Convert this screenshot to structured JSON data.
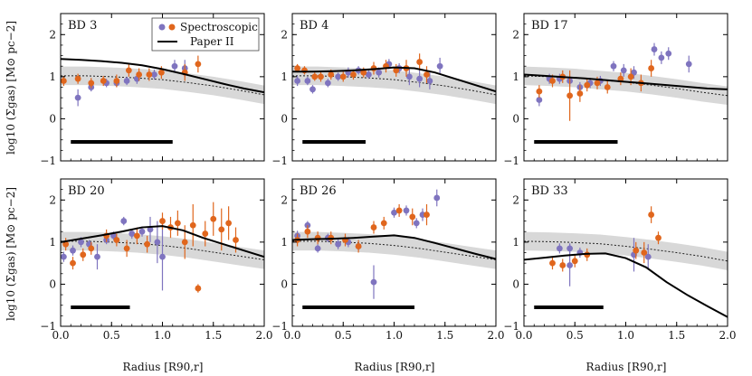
{
  "figure": {
    "xlabel": "Radius [R90,r]",
    "ylabel": "log10 (Σgas) [M⊙ pc−2]",
    "xlim": [
      0.0,
      2.0
    ],
    "ylim": [
      -1,
      2.5
    ],
    "xticks": [
      "0.0",
      "0.5",
      "1.0",
      "1.5",
      "2.0"
    ],
    "yticks": [
      "−1",
      "0",
      "1",
      "2"
    ],
    "colors": {
      "spec": "#e0661d",
      "photo": "#7f74bf",
      "model": "#000000",
      "band": "#d8d8d8",
      "dotted": "#222222"
    },
    "legend": {
      "spectroscopic": "Spectroscopic",
      "paper2": "Paper II"
    }
  },
  "chart_data": [
    {
      "type": "scatter",
      "title": "BD 3",
      "bar_length": 1.0,
      "model": {
        "x": [
          0.0,
          0.2,
          0.4,
          0.6,
          0.8,
          1.0,
          1.2,
          1.4,
          1.6,
          1.8,
          2.0
        ],
        "y": [
          1.42,
          1.4,
          1.37,
          1.33,
          1.27,
          1.18,
          1.07,
          0.95,
          0.83,
          0.72,
          0.63
        ]
      },
      "dotted": {
        "x": [
          0.0,
          0.25,
          0.5,
          0.75,
          1.0,
          1.25,
          1.5,
          1.75,
          2.0
        ],
        "y": [
          1.02,
          1.02,
          1.0,
          0.97,
          0.93,
          0.86,
          0.78,
          0.68,
          0.57
        ]
      },
      "band_width": 0.22,
      "photometric": [
        [
          0.17,
          0.5,
          0.2
        ],
        [
          0.3,
          0.75,
          0.1
        ],
        [
          0.45,
          0.85,
          0.1
        ],
        [
          0.55,
          0.85,
          0.1
        ],
        [
          0.65,
          0.9,
          0.1
        ],
        [
          0.75,
          0.95,
          0.12
        ],
        [
          0.92,
          1.05,
          0.12
        ],
        [
          1.12,
          1.25,
          0.15
        ],
        [
          1.22,
          1.2,
          0.2
        ]
      ],
      "spectroscopic": [
        [
          0.03,
          0.9,
          0.12
        ],
        [
          0.17,
          0.95,
          0.12
        ],
        [
          0.3,
          0.85,
          0.12
        ],
        [
          0.42,
          0.9,
          0.12
        ],
        [
          0.55,
          0.9,
          0.15
        ],
        [
          0.67,
          1.15,
          0.15
        ],
        [
          0.77,
          1.05,
          0.15
        ],
        [
          0.87,
          1.05,
          0.15
        ],
        [
          0.99,
          1.1,
          0.15
        ],
        [
          1.22,
          1.1,
          0.2
        ],
        [
          1.35,
          1.3,
          0.2
        ]
      ]
    },
    {
      "type": "scatter",
      "title": "BD 4",
      "bar_length": 0.62,
      "model": {
        "x": [
          0.0,
          0.2,
          0.4,
          0.6,
          0.8,
          1.0,
          1.2,
          1.4,
          1.6,
          1.8,
          2.0
        ],
        "y": [
          1.12,
          1.12,
          1.13,
          1.15,
          1.18,
          1.22,
          1.2,
          1.1,
          0.95,
          0.8,
          0.65
        ]
      },
      "dotted": {
        "x": [
          0.0,
          0.25,
          0.5,
          0.75,
          1.0,
          1.25,
          1.5,
          1.75,
          2.0
        ],
        "y": [
          1.02,
          1.02,
          1.0,
          0.97,
          0.93,
          0.86,
          0.78,
          0.68,
          0.57
        ]
      },
      "band_width": 0.22,
      "photometric": [
        [
          0.05,
          0.9,
          0.12
        ],
        [
          0.15,
          0.9,
          0.1
        ],
        [
          0.2,
          0.7,
          0.1
        ],
        [
          0.35,
          0.85,
          0.1
        ],
        [
          0.45,
          1.0,
          0.1
        ],
        [
          0.55,
          1.1,
          0.12
        ],
        [
          0.65,
          1.15,
          0.1
        ],
        [
          0.75,
          1.05,
          0.1
        ],
        [
          0.85,
          1.1,
          0.12
        ],
        [
          0.95,
          1.3,
          0.12
        ],
        [
          1.05,
          1.2,
          0.12
        ],
        [
          1.15,
          1.0,
          0.2
        ],
        [
          1.25,
          0.95,
          0.2
        ],
        [
          1.35,
          0.9,
          0.2
        ],
        [
          1.45,
          1.25,
          0.2
        ]
      ],
      "spectroscopic": [
        [
          0.05,
          1.2,
          0.1
        ],
        [
          0.12,
          1.15,
          0.1
        ],
        [
          0.22,
          1.0,
          0.1
        ],
        [
          0.28,
          1.0,
          0.12
        ],
        [
          0.38,
          1.05,
          0.12
        ],
        [
          0.5,
          1.0,
          0.12
        ],
        [
          0.6,
          1.05,
          0.12
        ],
        [
          0.7,
          1.1,
          0.12
        ],
        [
          0.8,
          1.2,
          0.15
        ],
        [
          0.92,
          1.25,
          0.15
        ],
        [
          1.02,
          1.15,
          0.15
        ],
        [
          1.12,
          1.2,
          0.2
        ],
        [
          1.25,
          1.35,
          0.2
        ],
        [
          1.32,
          1.05,
          0.2
        ]
      ]
    },
    {
      "type": "scatter",
      "title": "BD 17",
      "bar_length": 0.82,
      "model": {
        "x": [
          0.0,
          0.2,
          0.4,
          0.6,
          0.8,
          1.0,
          1.2,
          1.4,
          1.6,
          1.8,
          2.0
        ],
        "y": [
          1.05,
          1.02,
          0.99,
          0.96,
          0.92,
          0.88,
          0.84,
          0.8,
          0.76,
          0.72,
          0.7
        ]
      },
      "dotted": {
        "x": [
          0.0,
          0.25,
          0.5,
          0.75,
          1.0,
          1.25,
          1.5,
          1.75,
          2.0
        ],
        "y": [
          1.02,
          1.0,
          0.97,
          0.92,
          0.87,
          0.8,
          0.72,
          0.63,
          0.55
        ]
      },
      "band_width": 0.22,
      "photometric": [
        [
          0.15,
          0.45,
          0.15
        ],
        [
          0.25,
          0.95,
          0.12
        ],
        [
          0.35,
          0.95,
          0.12
        ],
        [
          0.45,
          0.9,
          0.12
        ],
        [
          0.55,
          0.75,
          0.12
        ],
        [
          0.65,
          0.85,
          0.12
        ],
        [
          0.75,
          0.9,
          0.12
        ],
        [
          0.88,
          1.25,
          0.12
        ],
        [
          0.98,
          1.15,
          0.15
        ],
        [
          1.08,
          1.1,
          0.15
        ],
        [
          1.28,
          1.65,
          0.15
        ],
        [
          1.35,
          1.45,
          0.15
        ],
        [
          1.42,
          1.55,
          0.15
        ],
        [
          1.62,
          1.3,
          0.2
        ]
      ],
      "spectroscopic": [
        [
          0.15,
          0.65,
          0.15
        ],
        [
          0.28,
          0.9,
          0.15
        ],
        [
          0.38,
          1.0,
          0.15
        ],
        [
          0.45,
          0.55,
          0.6
        ],
        [
          0.55,
          0.6,
          0.2
        ],
        [
          0.62,
          0.8,
          0.15
        ],
        [
          0.72,
          0.85,
          0.15
        ],
        [
          0.82,
          0.75,
          0.15
        ],
        [
          0.95,
          0.95,
          0.15
        ],
        [
          1.05,
          1.0,
          0.2
        ],
        [
          1.15,
          0.85,
          0.2
        ],
        [
          1.25,
          1.2,
          0.2
        ]
      ]
    },
    {
      "type": "scatter",
      "title": "BD 20",
      "bar_length": 0.58,
      "model": {
        "x": [
          0.0,
          0.2,
          0.4,
          0.6,
          0.8,
          1.0,
          1.2,
          1.4,
          1.6,
          1.8,
          2.0
        ],
        "y": [
          1.0,
          1.08,
          1.16,
          1.25,
          1.35,
          1.38,
          1.28,
          1.1,
          0.95,
          0.8,
          0.65
        ]
      },
      "dotted": {
        "x": [
          0.0,
          0.25,
          0.5,
          0.75,
          1.0,
          1.25,
          1.5,
          1.75,
          2.0
        ],
        "y": [
          1.02,
          1.02,
          1.0,
          0.97,
          0.92,
          0.85,
          0.76,
          0.67,
          0.58
        ]
      },
      "band_width": 0.22,
      "photometric": [
        [
          0.03,
          0.65,
          0.12
        ],
        [
          0.12,
          0.8,
          0.12
        ],
        [
          0.2,
          1.0,
          0.12
        ],
        [
          0.28,
          0.95,
          0.1
        ],
        [
          0.36,
          0.65,
          0.3
        ],
        [
          0.45,
          1.05,
          0.1
        ],
        [
          0.52,
          1.15,
          0.1
        ],
        [
          0.62,
          1.5,
          0.1
        ],
        [
          0.7,
          1.2,
          0.12
        ],
        [
          0.8,
          1.25,
          0.12
        ],
        [
          0.88,
          1.3,
          0.3
        ],
        [
          0.95,
          1.0,
          0.5
        ],
        [
          1.0,
          0.65,
          0.8
        ]
      ],
      "spectroscopic": [
        [
          0.05,
          0.95,
          0.15
        ],
        [
          0.12,
          0.5,
          0.15
        ],
        [
          0.22,
          0.7,
          0.15
        ],
        [
          0.3,
          0.85,
          0.15
        ],
        [
          0.45,
          1.15,
          0.15
        ],
        [
          0.55,
          1.05,
          0.15
        ],
        [
          0.65,
          0.85,
          0.2
        ],
        [
          0.75,
          1.15,
          0.2
        ],
        [
          0.85,
          0.95,
          0.2
        ],
        [
          1.0,
          1.5,
          0.2
        ],
        [
          1.08,
          1.35,
          0.25
        ],
        [
          1.15,
          1.45,
          0.3
        ],
        [
          1.22,
          1.0,
          0.4
        ],
        [
          1.3,
          1.4,
          0.5
        ],
        [
          1.35,
          -0.1,
          0.1
        ],
        [
          1.42,
          1.2,
          0.3
        ],
        [
          1.5,
          1.55,
          0.4
        ],
        [
          1.58,
          1.3,
          0.5
        ],
        [
          1.65,
          1.45,
          0.4
        ],
        [
          1.72,
          1.05,
          0.3
        ]
      ]
    },
    {
      "type": "scatter",
      "title": "BD 26",
      "bar_length": 1.1,
      "model": {
        "x": [
          0.0,
          0.2,
          0.4,
          0.6,
          0.8,
          1.0,
          1.2,
          1.4,
          1.6,
          1.8,
          2.0
        ],
        "y": [
          1.05,
          1.07,
          1.08,
          1.1,
          1.13,
          1.16,
          1.1,
          0.98,
          0.85,
          0.72,
          0.6
        ]
      },
      "dotted": {
        "x": [
          0.0,
          0.25,
          0.5,
          0.75,
          1.0,
          1.25,
          1.5,
          1.75,
          2.0
        ],
        "y": [
          1.02,
          1.02,
          1.0,
          0.97,
          0.92,
          0.85,
          0.76,
          0.67,
          0.58
        ]
      },
      "band_width": 0.22,
      "photometric": [
        [
          0.05,
          1.15,
          0.12
        ],
        [
          0.15,
          1.4,
          0.1
        ],
        [
          0.25,
          0.85,
          0.1
        ],
        [
          0.35,
          1.1,
          0.1
        ],
        [
          0.45,
          0.95,
          0.12
        ],
        [
          0.55,
          1.0,
          0.12
        ],
        [
          0.65,
          0.9,
          0.1
        ],
        [
          0.8,
          0.05,
          0.4
        ],
        [
          1.0,
          1.7,
          0.12
        ],
        [
          1.12,
          1.75,
          0.12
        ],
        [
          1.22,
          1.45,
          0.12
        ],
        [
          1.28,
          1.65,
          0.15
        ],
        [
          1.42,
          2.05,
          0.2
        ]
      ],
      "spectroscopic": [
        [
          0.05,
          1.05,
          0.15
        ],
        [
          0.15,
          1.25,
          0.15
        ],
        [
          0.25,
          1.1,
          0.15
        ],
        [
          0.38,
          1.1,
          0.15
        ],
        [
          0.52,
          1.05,
          0.15
        ],
        [
          0.65,
          0.9,
          0.15
        ],
        [
          0.8,
          1.35,
          0.15
        ],
        [
          0.9,
          1.45,
          0.15
        ],
        [
          1.05,
          1.75,
          0.15
        ],
        [
          1.18,
          1.6,
          0.2
        ],
        [
          1.32,
          1.65,
          0.25
        ]
      ]
    },
    {
      "type": "scatter",
      "title": "BD 33",
      "bar_length": 0.68,
      "model": {
        "x": [
          0.0,
          0.2,
          0.4,
          0.6,
          0.8,
          1.0,
          1.2,
          1.4,
          1.6,
          1.8,
          2.0
        ],
        "y": [
          0.58,
          0.63,
          0.68,
          0.72,
          0.73,
          0.62,
          0.4,
          0.05,
          -0.25,
          -0.52,
          -0.78
        ]
      },
      "dotted": {
        "x": [
          0.0,
          0.25,
          0.5,
          0.75,
          1.0,
          1.25,
          1.5,
          1.75,
          2.0
        ],
        "y": [
          1.02,
          1.01,
          0.99,
          0.96,
          0.9,
          0.83,
          0.75,
          0.66,
          0.55
        ]
      },
      "band_width": 0.22,
      "photometric": [
        [
          0.35,
          0.85,
          0.12
        ],
        [
          0.45,
          0.85,
          0.12
        ],
        [
          0.45,
          0.45,
          0.5
        ],
        [
          0.55,
          0.75,
          0.12
        ],
        [
          1.08,
          0.7,
          0.4
        ],
        [
          1.22,
          0.65,
          0.3
        ]
      ],
      "spectroscopic": [
        [
          0.28,
          0.5,
          0.15
        ],
        [
          0.38,
          0.45,
          0.15
        ],
        [
          0.5,
          0.55,
          0.15
        ],
        [
          0.62,
          0.7,
          0.15
        ],
        [
          1.1,
          0.8,
          0.2
        ],
        [
          1.18,
          0.75,
          0.25
        ],
        [
          1.25,
          1.65,
          0.2
        ],
        [
          1.32,
          1.1,
          0.15
        ]
      ]
    }
  ]
}
